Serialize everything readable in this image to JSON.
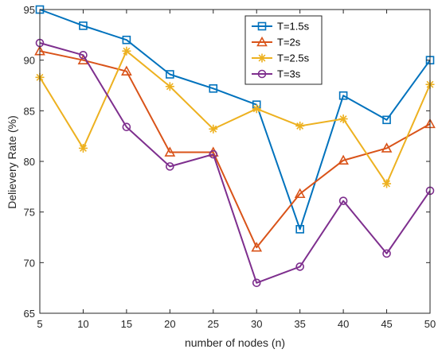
{
  "chart_data": {
    "type": "line",
    "title": "",
    "xlabel": "number of nodes (n)",
    "ylabel": "Delievery Rate (%)",
    "x": [
      5,
      10,
      15,
      20,
      25,
      30,
      35,
      40,
      45,
      50
    ],
    "xlim": [
      5,
      50
    ],
    "ylim": [
      65,
      95
    ],
    "xticks": [
      "5",
      "10",
      "15",
      "20",
      "25",
      "30",
      "35",
      "40",
      "45",
      "50"
    ],
    "yticks": [
      "65",
      "70",
      "75",
      "80",
      "85",
      "90",
      "95"
    ],
    "grid": false,
    "legend_position": "top-right",
    "series": [
      {
        "name": "T=1.5s",
        "marker": "square",
        "color": "#0072bd",
        "values": [
          95.0,
          93.4,
          92.0,
          88.6,
          87.2,
          85.6,
          73.3,
          86.5,
          84.1,
          90.0
        ]
      },
      {
        "name": "T=2s",
        "marker": "triangle",
        "color": "#d95319",
        "values": [
          90.9,
          90.0,
          88.9,
          80.9,
          80.9,
          71.5,
          76.8,
          80.1,
          81.3,
          83.7
        ]
      },
      {
        "name": "T=2.5s",
        "marker": "asterisk",
        "color": "#edb120",
        "values": [
          88.3,
          81.3,
          90.9,
          87.4,
          83.2,
          85.2,
          83.5,
          84.2,
          77.8,
          87.6
        ]
      },
      {
        "name": "T=3s",
        "marker": "circle",
        "color": "#7e2f8e",
        "values": [
          91.7,
          90.5,
          83.4,
          79.5,
          80.7,
          68.0,
          69.6,
          76.1,
          70.9,
          77.1
        ]
      }
    ]
  }
}
